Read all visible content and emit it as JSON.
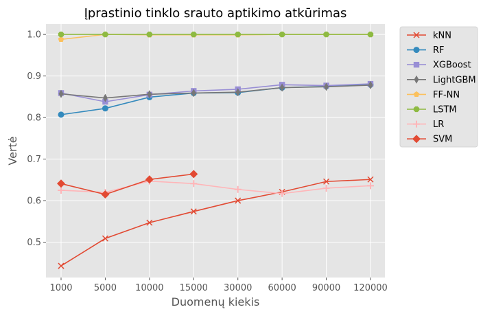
{
  "chart_data": {
    "type": "line",
    "title": "Įprastinio tinklo srauto aptikimo atkūrimas",
    "xlabel": "Duomenų kiekis",
    "ylabel": "Vertė",
    "categories": [
      "1000",
      "5000",
      "10000",
      "15000",
      "30000",
      "60000",
      "90000",
      "120000"
    ],
    "yticks": [
      "0.5",
      "0.6",
      "0.7",
      "0.8",
      "0.9",
      "1.0"
    ],
    "ylim": [
      0.415,
      1.025
    ],
    "grid": true,
    "legend_position": "outside-right",
    "series": [
      {
        "name": "kNN",
        "color": "#E24A33",
        "marker": "x",
        "values": [
          0.443,
          0.509,
          0.547,
          0.574,
          0.6,
          0.621,
          0.646,
          0.651
        ]
      },
      {
        "name": "RF",
        "color": "#348ABD",
        "marker": "circle",
        "values": [
          0.807,
          0.822,
          0.849,
          0.859,
          0.86,
          0.872,
          0.875,
          0.879
        ]
      },
      {
        "name": "XGBoost",
        "color": "#988ED5",
        "marker": "square",
        "values": [
          0.859,
          0.838,
          0.855,
          0.864,
          0.868,
          0.879,
          0.877,
          0.881
        ]
      },
      {
        "name": "LightGBM",
        "color": "#777777",
        "marker": "thin-diamond",
        "values": [
          0.857,
          0.847,
          0.856,
          0.859,
          0.861,
          0.872,
          0.874,
          0.878
        ]
      },
      {
        "name": "FF-NN",
        "color": "#FBC15E",
        "marker": "pentagon",
        "values": [
          0.988,
          1.0,
          0.999,
          0.999,
          0.999,
          1.0,
          1.0,
          1.0
        ]
      },
      {
        "name": "LSTM",
        "color": "#8EBA42",
        "marker": "octagon",
        "values": [
          1.0,
          1.0,
          1.0,
          1.0,
          1.0,
          1.0,
          1.0,
          1.0
        ]
      },
      {
        "name": "LR",
        "color": "#FFB5B8",
        "marker": "plus",
        "values": [
          0.625,
          0.62,
          0.647,
          0.641,
          0.627,
          0.617,
          0.63,
          0.636
        ]
      },
      {
        "name": "SVM",
        "color": "#E24A33",
        "marker": "diamond",
        "values": [
          0.641,
          0.615,
          0.651,
          0.664,
          null,
          null,
          null,
          null
        ]
      }
    ]
  }
}
